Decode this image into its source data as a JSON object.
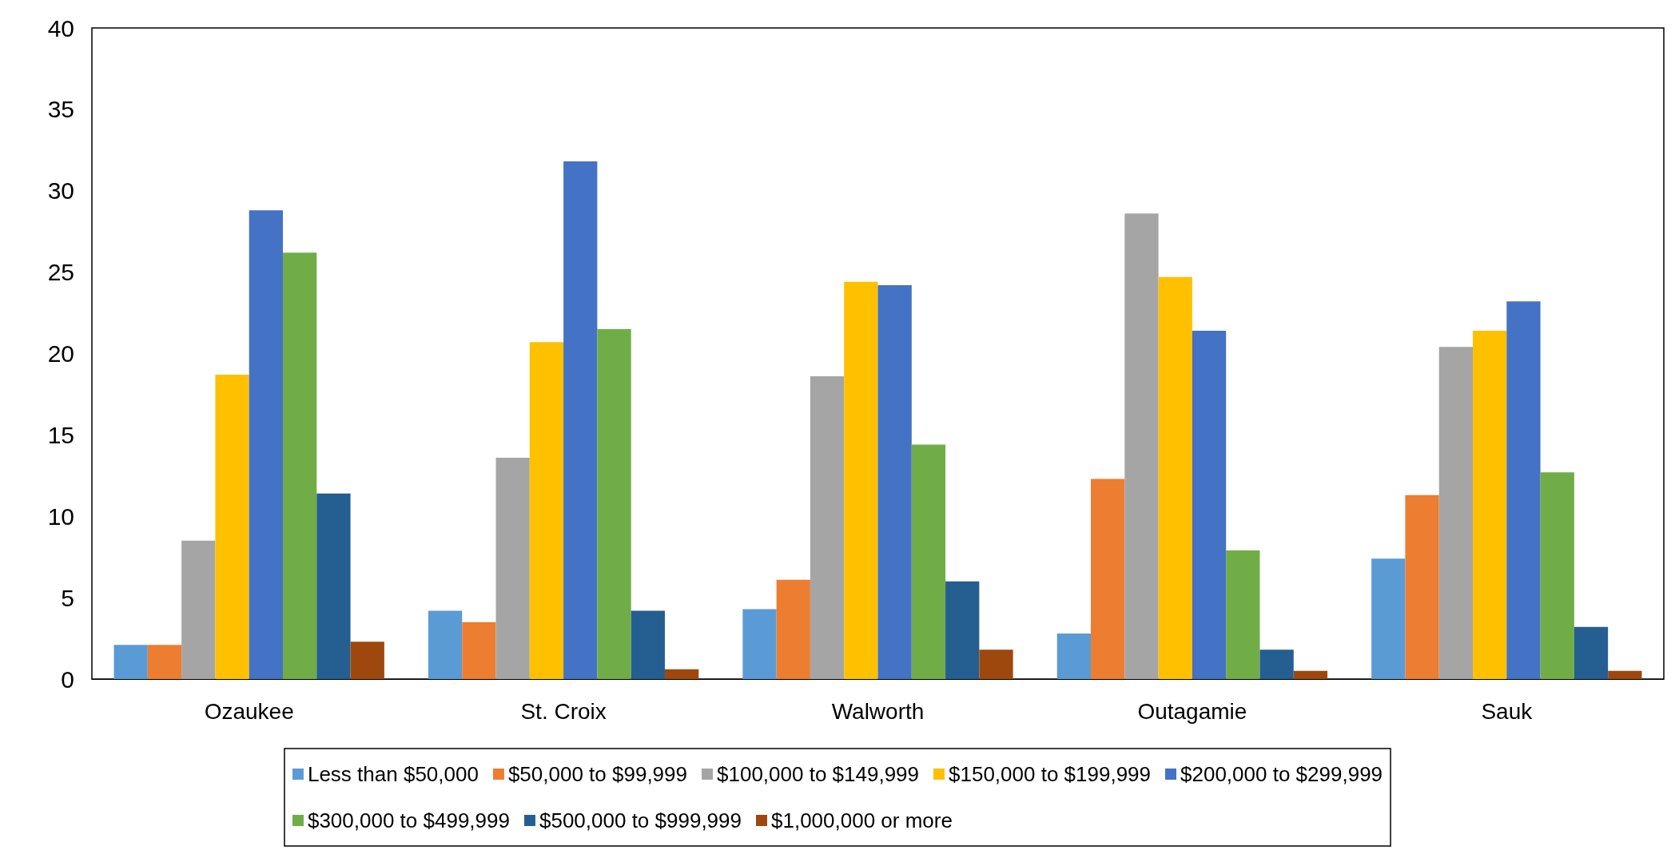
{
  "chart_data": {
    "type": "bar",
    "categories": [
      "Ozaukee",
      "St. Croix",
      "Walworth",
      "Outagamie",
      "Sauk"
    ],
    "series": [
      {
        "name": "Less than $50,000",
        "color": "#5b9bd5",
        "values": [
          2.1,
          4.2,
          4.3,
          2.8,
          7.4
        ]
      },
      {
        "name": "$50,000 to $99,999",
        "color": "#ed7d31",
        "values": [
          2.1,
          3.5,
          6.1,
          12.3,
          11.3
        ]
      },
      {
        "name": "$100,000 to $149,999",
        "color": "#a5a5a5",
        "values": [
          8.5,
          13.6,
          18.6,
          28.6,
          20.4
        ]
      },
      {
        "name": "$150,000 to $199,999",
        "color": "#ffc000",
        "values": [
          18.7,
          20.7,
          24.4,
          24.7,
          21.4
        ]
      },
      {
        "name": "$200,000 to $299,999",
        "color": "#4472c4",
        "values": [
          28.8,
          31.8,
          24.2,
          21.4,
          23.2
        ]
      },
      {
        "name": "$300,000 to $499,999",
        "color": "#70ad47",
        "values": [
          26.2,
          21.5,
          14.4,
          7.9,
          12.7
        ]
      },
      {
        "name": "$500,000 to $999,999",
        "color": "#255e91",
        "values": [
          11.4,
          4.2,
          6.0,
          1.8,
          3.2
        ]
      },
      {
        "name": "$1,000,000 or more",
        "color": "#9e480e",
        "values": [
          2.3,
          0.6,
          1.8,
          0.5,
          0.5
        ]
      }
    ],
    "ylim": [
      0,
      40
    ],
    "yticks": [
      0,
      5,
      10,
      15,
      20,
      25,
      30,
      35,
      40
    ],
    "grid": false,
    "legend": "bottom"
  }
}
